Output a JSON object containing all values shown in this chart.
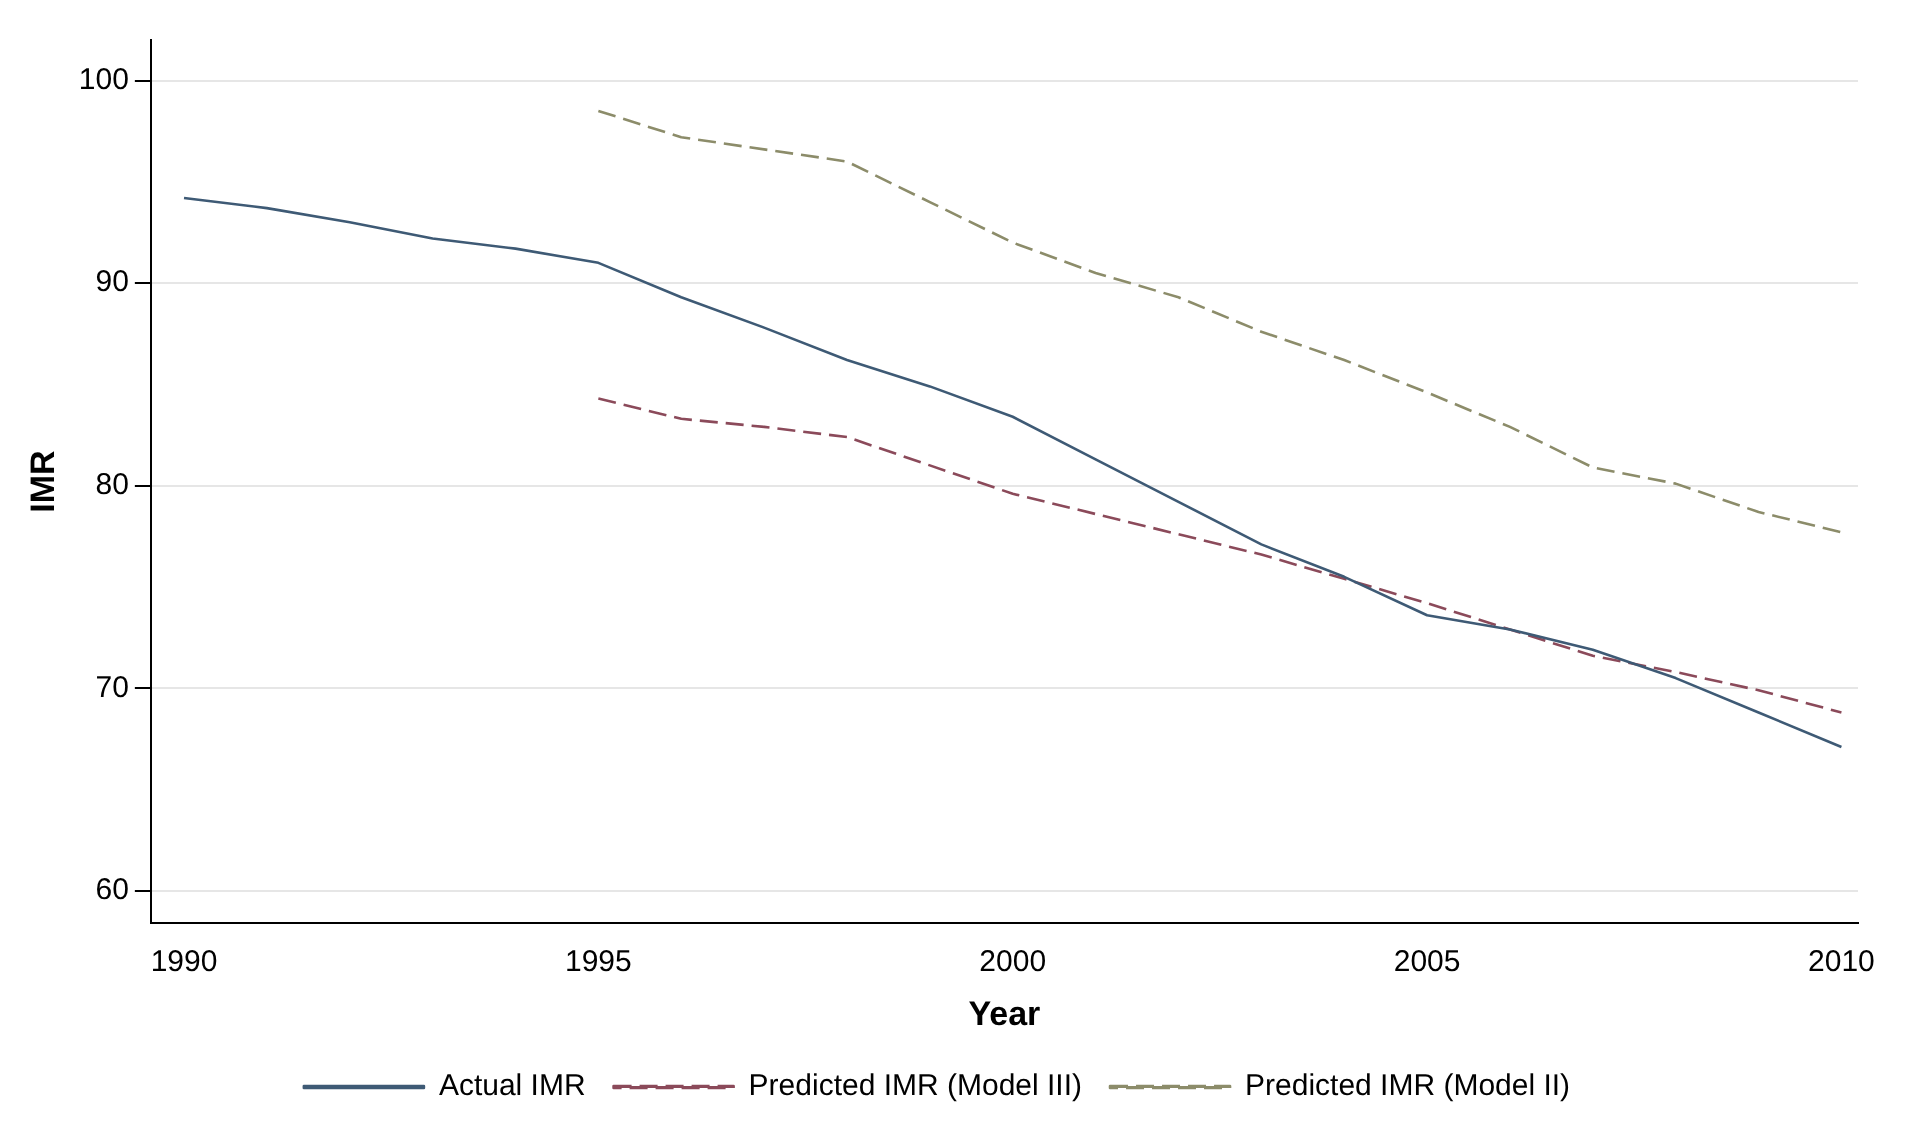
{
  "chart_data": {
    "type": "line",
    "xlabel": "Year",
    "ylabel": "IMR",
    "xlim": [
      1989.6,
      2010.2
    ],
    "xticks": [
      1990,
      1995,
      2000,
      2005,
      2010
    ],
    "ylim": [
      58.4,
      102
    ],
    "yticks": [
      60,
      70,
      80,
      90,
      100
    ],
    "grid": "y",
    "legend": "bottom",
    "marker": "none",
    "series": [
      {
        "name": "Actual IMR",
        "color": "#3e5a75",
        "line_style": "solid",
        "x": [
          1990,
          1991,
          1992,
          1993,
          1994,
          1995,
          1996,
          1997,
          1998,
          1999,
          2000,
          2001,
          2002,
          2003,
          2004,
          2005,
          2006,
          2007,
          2008,
          2009,
          2010
        ],
        "values": [
          94.2,
          93.7,
          93.0,
          92.2,
          91.7,
          91.0,
          89.3,
          87.8,
          86.2,
          84.9,
          83.4,
          81.3,
          79.2,
          77.1,
          75.5,
          73.6,
          72.9,
          71.9,
          70.5,
          68.8,
          67.1
        ]
      },
      {
        "name": "Predicted IMR (Model III)",
        "color": "#8b4a5a",
        "line_style": "dashed",
        "x": [
          1995,
          1996,
          1997,
          1998,
          1999,
          2000,
          2001,
          2002,
          2003,
          2004,
          2005,
          2006,
          2007,
          2008,
          2009,
          2010
        ],
        "values": [
          84.3,
          83.3,
          82.9,
          82.4,
          81.0,
          79.6,
          78.6,
          77.6,
          76.6,
          75.4,
          74.2,
          72.9,
          71.6,
          70.8,
          69.9,
          68.8
        ]
      },
      {
        "name": "Predicted IMR (Model II)",
        "color": "#8c8c6a",
        "line_style": "dashed",
        "x": [
          1995,
          1996,
          1997,
          1998,
          1999,
          2000,
          2001,
          2002,
          2003,
          2004,
          2005,
          2006,
          2007,
          2008,
          2009,
          2010
        ],
        "values": [
          98.5,
          97.2,
          96.6,
          96.0,
          94.0,
          92.0,
          90.5,
          89.3,
          87.6,
          86.2,
          84.6,
          82.9,
          80.9,
          80.1,
          78.7,
          77.7
        ]
      }
    ]
  }
}
